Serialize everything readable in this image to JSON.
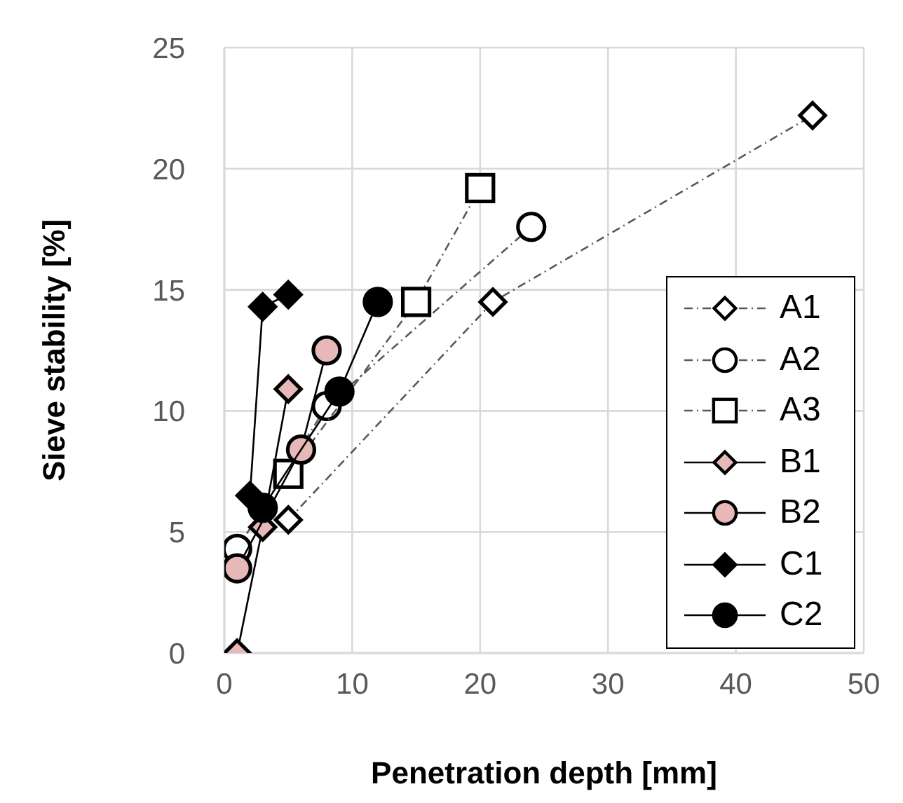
{
  "chart_data": {
    "type": "line",
    "xlabel": "Penetration depth [mm]",
    "ylabel": "Sieve stability [%]",
    "xlim": [
      0,
      50
    ],
    "xticks": [
      0,
      10,
      20,
      30,
      40,
      50
    ],
    "ylim": [
      0,
      25
    ],
    "yticks": [
      0,
      5,
      10,
      15,
      20,
      25
    ],
    "grid": true,
    "legend": "right",
    "series": [
      {
        "name": "A1",
        "color": "#ffffff",
        "marker": "diamond",
        "line_style": "dashed",
        "x": [
          5,
          21,
          46
        ],
        "values": [
          5.5,
          14.5,
          22.2
        ]
      },
      {
        "name": "A2",
        "color": "#ffffff",
        "marker": "circle",
        "line_style": "dashed",
        "x": [
          1,
          8,
          24
        ],
        "values": [
          4.3,
          10.2,
          17.6
        ]
      },
      {
        "name": "A3",
        "color": "#ffffff",
        "marker": "square",
        "line_style": "dashed",
        "x": [
          5,
          15,
          20
        ],
        "values": [
          7.4,
          14.5,
          19.2
        ]
      },
      {
        "name": "B1",
        "color": "#e6b9b8",
        "marker": "diamond",
        "line_style": "solid",
        "x": [
          1,
          3,
          5
        ],
        "values": [
          0,
          5.2,
          10.9
        ]
      },
      {
        "name": "B2",
        "color": "#e6b9b8",
        "marker": "circle",
        "line_style": "solid",
        "x": [
          1,
          6,
          8
        ],
        "values": [
          3.5,
          8.4,
          12.5
        ]
      },
      {
        "name": "C1",
        "color": "#000000",
        "marker": "diamond",
        "line_style": "solid",
        "x": [
          2,
          3,
          5
        ],
        "values": [
          6.5,
          14.3,
          14.8
        ]
      },
      {
        "name": "C2",
        "color": "#000000",
        "marker": "circle",
        "line_style": "solid",
        "x": [
          3,
          9,
          12
        ],
        "values": [
          6,
          10.8,
          14.5
        ]
      }
    ]
  }
}
